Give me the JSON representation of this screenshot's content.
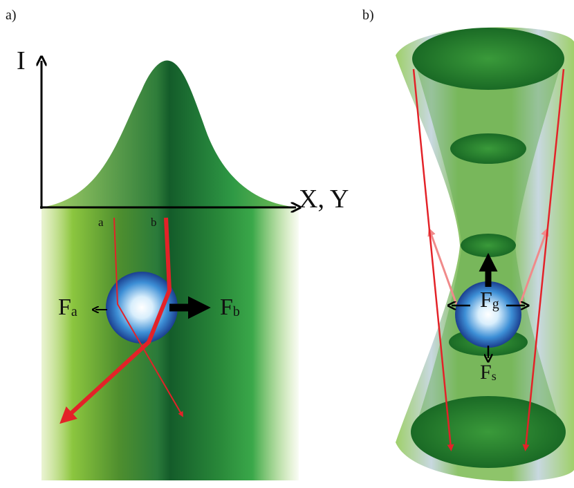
{
  "panels": [
    {
      "label": "a)",
      "axis_y": "I",
      "axis_x": "X, Y",
      "rays": [
        "a",
        "b"
      ],
      "forces": [
        {
          "symbol": "F",
          "subscript": "a"
        },
        {
          "symbol": "F",
          "subscript": "b"
        }
      ]
    },
    {
      "label": "b)",
      "forces": [
        {
          "symbol": "F",
          "subscript": "g"
        },
        {
          "symbol": "F",
          "subscript": "s"
        }
      ]
    }
  ]
}
